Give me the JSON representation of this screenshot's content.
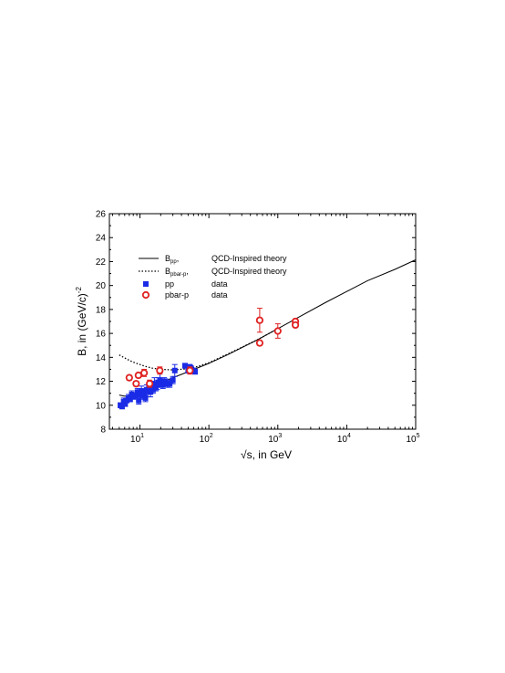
{
  "chart_data": {
    "type": "scatter",
    "title": "",
    "xlabel_root": "√",
    "xlabel_rest": "s, in GeV",
    "ylabel_main": "B, in (GeV/c)",
    "ylabel_sup": "-2",
    "x_scale": "log",
    "xlim": [
      3.6,
      100000
    ],
    "ylim": [
      8,
      26
    ],
    "y_ticks": [
      8,
      10,
      12,
      14,
      16,
      18,
      20,
      22,
      24,
      26
    ],
    "x_tick_labels": [
      {
        "value": 10,
        "base": "10",
        "exp": "1"
      },
      {
        "value": 100,
        "base": "10",
        "exp": "2"
      },
      {
        "value": 1000,
        "base": "10",
        "exp": "3"
      },
      {
        "value": 10000,
        "base": "10",
        "exp": "4"
      },
      {
        "value": 100000,
        "base": "10",
        "exp": "5"
      }
    ],
    "grid": false,
    "legend_position": "upper-left",
    "legend": [
      {
        "symbol": "solid-line",
        "label_main": "B",
        "label_sub": "pp",
        "label_sep": ",",
        "description": "QCD-Inspired theory"
      },
      {
        "symbol": "dotted-line",
        "label_main": "B",
        "label_sub": "pbar-p",
        "label_sep": ",",
        "description": "QCD-Inspired theory"
      },
      {
        "symbol": "blue-square",
        "label_main": "pp",
        "label_sub": "",
        "label_sep": "",
        "description": "data"
      },
      {
        "symbol": "red-circle",
        "label_main": "pbar-p",
        "label_sub": "",
        "label_sep": "",
        "description": "data"
      }
    ],
    "series": [
      {
        "type": "line",
        "style": "solid",
        "color": "#000000",
        "x": [
          5,
          6,
          7,
          8,
          10,
          12,
          15,
          20,
          30,
          50,
          100,
          200,
          500,
          1000,
          2000,
          5000,
          10000,
          20000,
          50000,
          100000
        ],
        "y": [
          10.85,
          10.75,
          10.8,
          10.9,
          11.1,
          11.3,
          11.55,
          11.85,
          12.3,
          12.8,
          13.5,
          14.3,
          15.45,
          16.4,
          17.35,
          18.6,
          19.5,
          20.4,
          21.35,
          22.15
        ]
      },
      {
        "type": "line",
        "style": "dotted",
        "color": "#000000",
        "x": [
          5,
          6,
          7,
          8,
          10,
          12,
          15,
          20,
          30,
          50,
          70,
          100,
          200,
          500,
          1000
        ],
        "y": [
          14.2,
          13.95,
          13.75,
          13.6,
          13.4,
          13.25,
          13.1,
          13.0,
          12.95,
          13.05,
          13.25,
          13.55,
          14.35,
          15.45,
          16.4
        ]
      },
      {
        "type": "scatter",
        "marker": "square",
        "color": "#1a2be6",
        "x": [
          5.2,
          5.5,
          5.8,
          6.1,
          6.4,
          6.8,
          7.2,
          7.6,
          8.0,
          8.6,
          9.2,
          9.6,
          10.0,
          10.5,
          11.0,
          11.5,
          12.0,
          12.5,
          13.0,
          13.6,
          14.2,
          14.8,
          15.5,
          16.2,
          17.0,
          17.8,
          18.6,
          19.5,
          20.5,
          21.5,
          22.5,
          23.5,
          25.0,
          27.0,
          30.0,
          32.0,
          45.0,
          50.0,
          53.0,
          55.0,
          60.0,
          63.0
        ],
        "y": [
          10.0,
          9.9,
          10.3,
          10.1,
          10.4,
          10.6,
          10.5,
          10.9,
          10.7,
          10.8,
          11.1,
          10.4,
          10.9,
          11.2,
          10.8,
          11.0,
          10.6,
          11.3,
          11.2,
          11.4,
          11.1,
          11.6,
          11.3,
          11.8,
          11.5,
          11.7,
          11.9,
          12.1,
          11.8,
          11.7,
          12.0,
          11.9,
          11.8,
          11.8,
          12.1,
          12.9,
          13.3,
          12.9,
          13.2,
          13.1,
          12.9,
          12.8
        ],
        "err": [
          0.2,
          0.2,
          0.3,
          0.2,
          0.2,
          0.3,
          0.2,
          0.3,
          0.2,
          0.2,
          0.3,
          0.3,
          0.3,
          0.4,
          0.3,
          0.3,
          0.3,
          0.4,
          0.5,
          0.3,
          0.4,
          0.4,
          0.3,
          0.5,
          0.3,
          0.4,
          0.4,
          0.6,
          0.3,
          0.3,
          0.3,
          0.3,
          0.3,
          0.3,
          0.3,
          0.5,
          0.2,
          0.2,
          0.2,
          0.2,
          0.2,
          0.2
        ]
      },
      {
        "type": "scatter",
        "marker": "circle-open",
        "color": "#e02020",
        "x": [
          7.0,
          8.8,
          9.5,
          11.5,
          13.8,
          19.4,
          53.0,
          546.0,
          546.0,
          1000.0,
          1800.0,
          1800.0
        ],
        "y": [
          12.3,
          11.8,
          12.5,
          12.7,
          11.8,
          12.9,
          12.9,
          17.1,
          15.2,
          16.2,
          17.0,
          16.7
        ],
        "err": [
          0.2,
          0.2,
          0.2,
          0.3,
          0.3,
          0.3,
          0.3,
          1.0,
          0.2,
          0.6,
          0.2,
          0.2
        ]
      }
    ]
  }
}
